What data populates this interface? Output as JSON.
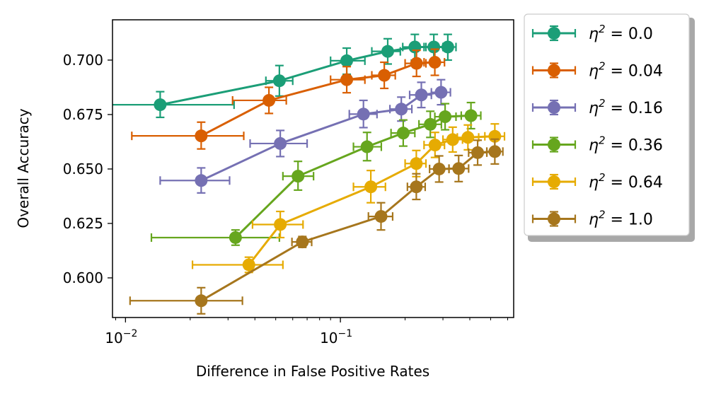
{
  "chart_data": {
    "type": "scatter",
    "title": "",
    "xlabel": "Difference in False Positive Rates",
    "ylabel": "Overall Accuracy",
    "xscale": "log",
    "xlim": [
      0.0087,
      0.64
    ],
    "ylim": [
      0.5818,
      0.7185
    ],
    "grid": false,
    "legend_position": "outside-right",
    "x_ticks": [
      {
        "value": 0.01,
        "base": "10",
        "exp": "−2"
      },
      {
        "value": 0.1,
        "base": "10",
        "exp": "−1"
      }
    ],
    "y_ticks": [
      {
        "value": 0.6,
        "label": "0.600"
      },
      {
        "value": 0.625,
        "label": "0.625"
      },
      {
        "value": 0.65,
        "label": "0.650"
      },
      {
        "value": 0.675,
        "label": "0.675"
      },
      {
        "value": 0.7,
        "label": "0.700"
      }
    ],
    "series": [
      {
        "name": "η² = 0.0",
        "legend_label": "0.0",
        "color": "#1b9e77",
        "points": [
          {
            "x": 0.0145,
            "y": 0.6795,
            "xlo": 0.0082,
            "xhi": 0.032,
            "ylo": 0.6737,
            "yhi": 0.6855
          },
          {
            "x": 0.052,
            "y": 0.6905,
            "xlo": 0.045,
            "xhi": 0.06,
            "ylo": 0.6835,
            "yhi": 0.6975
          },
          {
            "x": 0.107,
            "y": 0.6997,
            "xlo": 0.09,
            "xhi": 0.13,
            "ylo": 0.6935,
            "yhi": 0.7055
          },
          {
            "x": 0.166,
            "y": 0.704,
            "xlo": 0.14,
            "xhi": 0.19,
            "ylo": 0.6982,
            "yhi": 0.7098
          },
          {
            "x": 0.222,
            "y": 0.706,
            "xlo": 0.195,
            "xhi": 0.25,
            "ylo": 0.7,
            "yhi": 0.7118
          },
          {
            "x": 0.272,
            "y": 0.706,
            "xlo": 0.245,
            "xhi": 0.3,
            "ylo": 0.7,
            "yhi": 0.7118
          },
          {
            "x": 0.316,
            "y": 0.706,
            "xlo": 0.285,
            "xhi": 0.345,
            "ylo": 0.7,
            "yhi": 0.7118
          }
        ]
      },
      {
        "name": "η² = 0.04",
        "legend_label": "0.04",
        "color": "#d95f02",
        "points": [
          {
            "x": 0.0225,
            "y": 0.6652,
            "xlo": 0.0107,
            "xhi": 0.0355,
            "ylo": 0.6592,
            "yhi": 0.6715
          },
          {
            "x": 0.0465,
            "y": 0.6815,
            "xlo": 0.0315,
            "xhi": 0.056,
            "ylo": 0.6755,
            "yhi": 0.6875
          },
          {
            "x": 0.107,
            "y": 0.691,
            "xlo": 0.09,
            "xhi": 0.13,
            "ylo": 0.685,
            "yhi": 0.697
          },
          {
            "x": 0.16,
            "y": 0.693,
            "xlo": 0.14,
            "xhi": 0.18,
            "ylo": 0.687,
            "yhi": 0.699
          },
          {
            "x": 0.226,
            "y": 0.6985,
            "xlo": 0.2,
            "xhi": 0.25,
            "ylo": 0.6925,
            "yhi": 0.7045
          },
          {
            "x": 0.275,
            "y": 0.699,
            "xlo": 0.245,
            "xhi": 0.305,
            "ylo": 0.693,
            "yhi": 0.705
          }
        ]
      },
      {
        "name": "η² = 0.16",
        "legend_label": "0.16",
        "color": "#7570b3",
        "points": [
          {
            "x": 0.0225,
            "y": 0.6447,
            "xlo": 0.0145,
            "xhi": 0.0305,
            "ylo": 0.639,
            "yhi": 0.6505
          },
          {
            "x": 0.0525,
            "y": 0.6617,
            "xlo": 0.038,
            "xhi": 0.07,
            "ylo": 0.6557,
            "yhi": 0.6677
          },
          {
            "x": 0.128,
            "y": 0.6752,
            "xlo": 0.11,
            "xhi": 0.148,
            "ylo": 0.669,
            "yhi": 0.6815
          },
          {
            "x": 0.192,
            "y": 0.6775,
            "xlo": 0.17,
            "xhi": 0.215,
            "ylo": 0.672,
            "yhi": 0.683
          },
          {
            "x": 0.238,
            "y": 0.684,
            "xlo": 0.21,
            "xhi": 0.265,
            "ylo": 0.6782,
            "yhi": 0.6898
          },
          {
            "x": 0.294,
            "y": 0.6852,
            "xlo": 0.265,
            "xhi": 0.325,
            "ylo": 0.6795,
            "yhi": 0.691
          }
        ]
      },
      {
        "name": "η² = 0.36",
        "legend_label": "0.36",
        "color": "#66a61e",
        "points": [
          {
            "x": 0.0325,
            "y": 0.6185,
            "xlo": 0.0132,
            "xhi": 0.052,
            "ylo": 0.615,
            "yhi": 0.622
          },
          {
            "x": 0.0635,
            "y": 0.6467,
            "xlo": 0.054,
            "xhi": 0.075,
            "ylo": 0.6403,
            "yhi": 0.6535
          },
          {
            "x": 0.133,
            "y": 0.6602,
            "xlo": 0.115,
            "xhi": 0.155,
            "ylo": 0.6538,
            "yhi": 0.6668
          },
          {
            "x": 0.196,
            "y": 0.6665,
            "xlo": 0.172,
            "xhi": 0.222,
            "ylo": 0.6605,
            "yhi": 0.6725
          },
          {
            "x": 0.262,
            "y": 0.6705,
            "xlo": 0.232,
            "xhi": 0.295,
            "ylo": 0.6645,
            "yhi": 0.6765
          },
          {
            "x": 0.307,
            "y": 0.674,
            "xlo": 0.275,
            "xhi": 0.345,
            "ylo": 0.668,
            "yhi": 0.68
          },
          {
            "x": 0.405,
            "y": 0.6745,
            "xlo": 0.365,
            "xhi": 0.45,
            "ylo": 0.6685,
            "yhi": 0.6805
          }
        ]
      },
      {
        "name": "η² = 0.64",
        "legend_label": "0.64",
        "color": "#e6ab02",
        "points": [
          {
            "x": 0.0375,
            "y": 0.606,
            "xlo": 0.0205,
            "xhi": 0.054,
            "ylo": 0.6025,
            "yhi": 0.6095
          },
          {
            "x": 0.0525,
            "y": 0.6245,
            "xlo": 0.039,
            "xhi": 0.067,
            "ylo": 0.6185,
            "yhi": 0.6305
          },
          {
            "x": 0.1385,
            "y": 0.6418,
            "xlo": 0.115,
            "xhi": 0.162,
            "ylo": 0.6345,
            "yhi": 0.6493
          },
          {
            "x": 0.2255,
            "y": 0.6525,
            "xlo": 0.2,
            "xhi": 0.25,
            "ylo": 0.6465,
            "yhi": 0.6585
          },
          {
            "x": 0.2755,
            "y": 0.661,
            "xlo": 0.245,
            "xhi": 0.305,
            "ylo": 0.6553,
            "yhi": 0.6668
          },
          {
            "x": 0.333,
            "y": 0.6635,
            "xlo": 0.3,
            "xhi": 0.37,
            "ylo": 0.6578,
            "yhi": 0.6692
          },
          {
            "x": 0.392,
            "y": 0.6645,
            "xlo": 0.35,
            "xhi": 0.44,
            "ylo": 0.6588,
            "yhi": 0.6702
          },
          {
            "x": 0.523,
            "y": 0.665,
            "xlo": 0.47,
            "xhi": 0.58,
            "ylo": 0.6593,
            "yhi": 0.6707
          }
        ]
      },
      {
        "name": "η² = 1.0",
        "legend_label": "1.0",
        "color": "#a6761d",
        "points": [
          {
            "x": 0.0225,
            "y": 0.5895,
            "xlo": 0.0105,
            "xhi": 0.035,
            "ylo": 0.5835,
            "yhi": 0.5955
          },
          {
            "x": 0.0665,
            "y": 0.6165,
            "xlo": 0.0595,
            "xhi": 0.0735,
            "ylo": 0.614,
            "yhi": 0.619
          },
          {
            "x": 0.1545,
            "y": 0.6282,
            "xlo": 0.135,
            "xhi": 0.175,
            "ylo": 0.622,
            "yhi": 0.6345
          },
          {
            "x": 0.2255,
            "y": 0.6418,
            "xlo": 0.205,
            "xhi": 0.248,
            "ylo": 0.636,
            "yhi": 0.6478
          },
          {
            "x": 0.288,
            "y": 0.65,
            "xlo": 0.26,
            "xhi": 0.32,
            "ylo": 0.644,
            "yhi": 0.656
          },
          {
            "x": 0.355,
            "y": 0.6502,
            "xlo": 0.32,
            "xhi": 0.395,
            "ylo": 0.6442,
            "yhi": 0.6562
          },
          {
            "x": 0.435,
            "y": 0.6575,
            "xlo": 0.395,
            "xhi": 0.48,
            "ylo": 0.6518,
            "yhi": 0.6632
          },
          {
            "x": 0.523,
            "y": 0.658,
            "xlo": 0.48,
            "xhi": 0.57,
            "ylo": 0.6523,
            "yhi": 0.6637
          }
        ]
      }
    ]
  }
}
